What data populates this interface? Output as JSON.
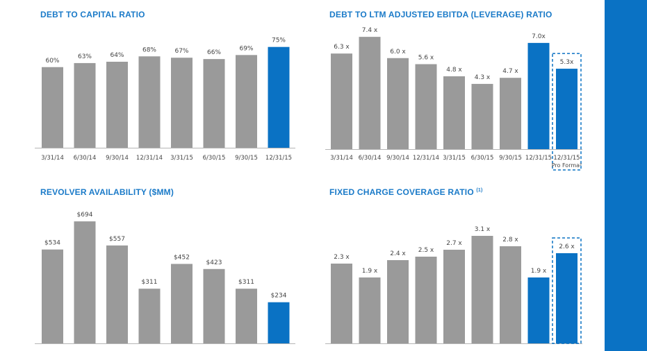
{
  "colors": {
    "gray": "#9a9a9a",
    "blue": "#0a72c4",
    "title": "#1a7ac8",
    "label": "#444444"
  },
  "chart_data": [
    {
      "id": "debt_to_capital",
      "type": "bar",
      "title": "DEBT TO CAPITAL RATIO",
      "categories": [
        "3/31/14",
        "6/30/14",
        "9/30/14",
        "12/31/14",
        "3/31/15",
        "6/30/15",
        "9/30/15",
        "12/31/15"
      ],
      "values": [
        60,
        63,
        64,
        68,
        67,
        66,
        69,
        75
      ],
      "labels": [
        "60%",
        "63%",
        "64%",
        "68%",
        "67%",
        "66%",
        "69%",
        "75%"
      ],
      "highlight": [
        7
      ],
      "dashed": [],
      "ylim": [
        0,
        80
      ],
      "grid": false
    },
    {
      "id": "leverage_ratio",
      "type": "bar",
      "title": "DEBT TO LTM ADJUSTED EBITDA (LEVERAGE) RATIO",
      "categories": [
        "3/31/14",
        "6/30/14",
        "9/30/14",
        "12/31/14",
        "3/31/15",
        "6/30/15",
        "9/30/15",
        "12/31/15",
        "12/31/15"
      ],
      "category_sublabels": [
        "",
        "",
        "",
        "",
        "",
        "",
        "",
        "",
        "Pro Forma²"
      ],
      "values": [
        6.3,
        7.4,
        6.0,
        5.6,
        4.8,
        4.3,
        4.7,
        7.0,
        5.3
      ],
      "labels": [
        "6.3 x",
        "7.4 x",
        "6.0 x",
        "5.6 x",
        "4.8 x",
        "4.3 x",
        "4.7 x",
        "7.0x",
        "5.3x"
      ],
      "highlight": [
        7,
        8
      ],
      "dashed": [
        8
      ],
      "ylim": [
        0,
        8
      ],
      "grid": false
    },
    {
      "id": "revolver_availability",
      "type": "bar",
      "title": "REVOLVER AVAILABILITY ($MM)",
      "categories": [],
      "values": [
        534,
        694,
        557,
        311,
        452,
        423,
        311,
        234
      ],
      "labels": [
        "$534",
        "$694",
        "$557",
        "$311",
        "$452",
        "$423",
        "$311",
        "$234"
      ],
      "highlight": [
        7
      ],
      "dashed": [],
      "ylim": [
        0,
        730
      ],
      "grid": false
    },
    {
      "id": "fixed_charge_coverage",
      "type": "bar",
      "title": "FIXED CHARGE COVERAGE RATIO",
      "title_superscript": "(1)",
      "categories": [],
      "values": [
        2.3,
        1.9,
        2.4,
        2.5,
        2.7,
        3.1,
        2.8,
        1.9,
        2.6
      ],
      "labels": [
        "2.3 x",
        "1.9 x",
        "2.4 x",
        "2.5 x",
        "2.7 x",
        "3.1 x",
        "2.8 x",
        "1.9 x",
        "2.6 x"
      ],
      "highlight": [
        7,
        8
      ],
      "dashed": [
        8
      ],
      "ylim": [
        0,
        3.4
      ],
      "grid": false
    }
  ]
}
